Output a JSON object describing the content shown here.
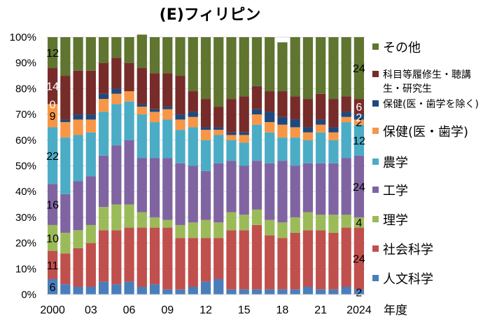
{
  "chart_data": {
    "type": "bar",
    "stacked": true,
    "title": "(E)フィリピン",
    "xlabel": "年度",
    "ylabel": "",
    "ylim": [
      0,
      100
    ],
    "yticks": [
      "0%",
      "10%",
      "20%",
      "30%",
      "40%",
      "50%",
      "60%",
      "70%",
      "80%",
      "90%",
      "100%"
    ],
    "grid": true,
    "legend_position": "right",
    "categories": [
      "2000",
      "2001",
      "2002",
      "2003",
      "2004",
      "2005",
      "2006",
      "2007",
      "2008",
      "2009",
      "2010",
      "2011",
      "2012",
      "2013",
      "2014",
      "2015",
      "2016",
      "2017",
      "2018",
      "2019",
      "2020",
      "2021",
      "2022",
      "2023",
      "2024"
    ],
    "xtick_labels": [
      "2000",
      "",
      "",
      "03",
      "",
      "",
      "06",
      "",
      "",
      "09",
      "",
      "",
      "12",
      "",
      "",
      "15",
      "",
      "",
      "18",
      "",
      "",
      "21",
      "",
      "",
      "2024"
    ],
    "series": [
      {
        "name": "人文科学",
        "color": "#4a7ebb",
        "values": [
          6,
          4,
          3,
          3,
          5,
          4,
          5,
          3,
          4,
          2,
          2,
          3,
          5,
          6,
          2,
          2,
          2,
          2,
          2,
          2,
          3,
          2,
          2,
          3,
          2
        ]
      },
      {
        "name": "社会科学",
        "color": "#c0504d",
        "values": [
          11,
          12,
          15,
          17,
          20,
          21,
          21,
          23,
          22,
          24,
          20,
          19,
          17,
          16,
          23,
          23,
          25,
          21,
          20,
          22,
          22,
          23,
          22,
          23,
          24
        ]
      },
      {
        "name": "理学",
        "color": "#9bbb59",
        "values": [
          10,
          8,
          7,
          7,
          9,
          10,
          9,
          6,
          4,
          3,
          5,
          6,
          7,
          6,
          7,
          6,
          6,
          6,
          6,
          6,
          7,
          6,
          7,
          5,
          4
        ]
      },
      {
        "name": "工学",
        "color": "#8064a2",
        "values": [
          16,
          15,
          19,
          19,
          20,
          23,
          25,
          21,
          23,
          24,
          24,
          22,
          19,
          23,
          20,
          19,
          19,
          22,
          24,
          20,
          19,
          20,
          20,
          22,
          24
        ]
      },
      {
        "name": "農学",
        "color": "#4bacc6",
        "values": [
          22,
          22,
          18,
          17,
          17,
          16,
          15,
          17,
          14,
          15,
          13,
          15,
          12,
          11,
          8,
          9,
          14,
          12,
          9,
          11,
          9,
          12,
          9,
          14,
          12
        ]
      },
      {
        "name": "保健(医・歯学)",
        "color": "#f79646",
        "values": [
          9,
          6,
          6,
          5,
          5,
          4,
          4,
          3,
          4,
          4,
          4,
          4,
          4,
          2,
          2,
          3,
          4,
          4,
          5,
          4,
          3,
          3,
          3,
          2,
          2
        ]
      },
      {
        "name": "保健(医・歯学を除く)",
        "color": "#1f497d",
        "values": [
          0,
          1,
          2,
          2,
          2,
          2,
          0,
          1,
          1,
          1,
          2,
          2,
          1,
          1,
          1,
          1,
          2,
          4,
          3,
          3,
          2,
          2,
          2,
          2,
          2
        ]
      },
      {
        "name": "科目等履修生・聴講生・研究生",
        "color": "#772c2a",
        "values": [
          14,
          17,
          17,
          17,
          12,
          12,
          11,
          14,
          14,
          13,
          15,
          8,
          11,
          8,
          13,
          14,
          9,
          8,
          10,
          9,
          11,
          10,
          11,
          6,
          6
        ]
      },
      {
        "name": "その他",
        "color": "#5f7530",
        "values": [
          12,
          15,
          13,
          13,
          10,
          8,
          10,
          13,
          14,
          14,
          15,
          21,
          24,
          27,
          24,
          23,
          19,
          21,
          19,
          23,
          24,
          22,
          24,
          23,
          24
        ]
      }
    ],
    "data_labels": [
      {
        "year": "2000",
        "series": "人文科学",
        "text": "6",
        "color": "#000000"
      },
      {
        "year": "2000",
        "series": "社会科学",
        "text": "11",
        "color": "#000000"
      },
      {
        "year": "2000",
        "series": "理学",
        "text": "10",
        "color": "#000000"
      },
      {
        "year": "2000",
        "series": "工学",
        "text": "16",
        "color": "#000000"
      },
      {
        "year": "2000",
        "series": "農学",
        "text": "22",
        "color": "#000000"
      },
      {
        "year": "2000",
        "series": "保健(医・歯学)",
        "text": "9",
        "color": "#000000"
      },
      {
        "year": "2000",
        "series": "保健(医・歯学を除く)",
        "text": "0",
        "color": "#ffffff"
      },
      {
        "year": "2000",
        "series": "科目等履修生・聴講生・研究生",
        "text": "14",
        "color": "#ffffff"
      },
      {
        "year": "2000",
        "series": "その他",
        "text": "12",
        "color": "#000000"
      },
      {
        "year": "2024",
        "series": "人文科学",
        "text": "2",
        "color": "#000000"
      },
      {
        "year": "2024",
        "series": "社会科学",
        "text": "24",
        "color": "#000000"
      },
      {
        "year": "2024",
        "series": "理学",
        "text": "4",
        "color": "#000000"
      },
      {
        "year": "2024",
        "series": "工学",
        "text": "24",
        "color": "#000000"
      },
      {
        "year": "2024",
        "series": "農学",
        "text": "12",
        "color": "#000000"
      },
      {
        "year": "2024",
        "series": "保健(医・歯学)",
        "text": "2",
        "color": "#000000"
      },
      {
        "year": "2024",
        "series": "保健(医・歯学を除く)",
        "text": "2",
        "color": "#ffffff"
      },
      {
        "year": "2024",
        "series": "科目等履修生・聴講生・研究生",
        "text": "6",
        "color": "#ffffff"
      },
      {
        "year": "2024",
        "series": "その他",
        "text": "24",
        "color": "#000000"
      }
    ],
    "legend": [
      {
        "label": "その他",
        "color": "#5f7530",
        "size": "large"
      },
      {
        "label": "科目等履修生・聴講",
        "label2": "生・研究生",
        "color": "#772c2a",
        "size": "small"
      },
      {
        "label": "保健(医・歯学を除く)",
        "color": "#1f497d",
        "size": "small"
      },
      {
        "label": "保健(医・歯学)",
        "color": "#f79646",
        "size": "large"
      },
      {
        "label": "農学",
        "color": "#4bacc6",
        "size": "large"
      },
      {
        "label": "工学",
        "color": "#8064a2",
        "size": "large"
      },
      {
        "label": "理学",
        "color": "#9bbb59",
        "size": "large"
      },
      {
        "label": "社会科学",
        "color": "#c0504d",
        "size": "large"
      },
      {
        "label": "人文科学",
        "color": "#4a7ebb",
        "size": "large"
      }
    ]
  }
}
